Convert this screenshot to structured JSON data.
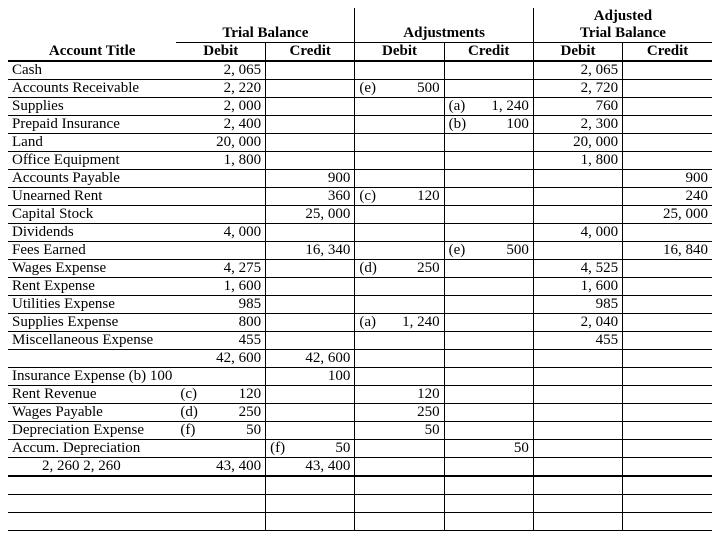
{
  "colors": {
    "background": "#ffffff",
    "text": "#000000",
    "border": "#000000"
  },
  "typography": {
    "family": "Times New Roman",
    "size_pt": 11,
    "header_bold": true
  },
  "headers": {
    "trial_balance": "Trial Balance",
    "adjustments": "Adjustments",
    "adjusted": "Adjusted\nTrial Balance",
    "account_title": "Account Title",
    "debit": "Debit",
    "credit": "Credit"
  },
  "rows": [
    {
      "title": "Cash",
      "tb_d": "2, 065",
      "atb_d": "2, 065"
    },
    {
      "title": "Accounts Receivable",
      "tb_d": "2, 220",
      "adj_d_tag": "(e)",
      "adj_d": "500",
      "atb_d": "2, 720"
    },
    {
      "title": "Supplies",
      "tb_d": "2, 000",
      "adj_c_tag": "(a)",
      "adj_c": "1, 240",
      "atb_d": "760"
    },
    {
      "title": "Prepaid Insurance",
      "tb_d": "2, 400",
      "adj_c_tag": "(b)",
      "adj_c": "100",
      "atb_d": "2, 300"
    },
    {
      "title": "Land",
      "tb_d": "20, 000",
      "atb_d": "20, 000"
    },
    {
      "title": "Office Equipment",
      "tb_d": "1, 800",
      "atb_d": "1, 800"
    },
    {
      "title": "Accounts Payable",
      "tb_c": "900",
      "atb_c": "900"
    },
    {
      "title": "Unearned Rent",
      "tb_c": "360",
      "adj_d_tag": "(c)",
      "adj_d": "120",
      "atb_c": "240"
    },
    {
      "title": "Capital Stock",
      "tb_c": "25, 000",
      "atb_c": "25, 000"
    },
    {
      "title": "Dividends",
      "tb_d": "4, 000",
      "atb_d": "4, 000"
    },
    {
      "title": "Fees Earned",
      "tb_c": "16, 340",
      "adj_c_tag": "(e)",
      "adj_c": "500",
      "atb_c": "16, 840"
    },
    {
      "title": "Wages Expense",
      "tb_d": "4, 275",
      "adj_d_tag": "(d)",
      "adj_d": "250",
      "atb_d": "4, 525"
    },
    {
      "title": "Rent Expense",
      "tb_d": "1, 600",
      "atb_d": "1, 600"
    },
    {
      "title": "Utilities Expense",
      "tb_d": "985",
      "atb_d": "985"
    },
    {
      "title": "Supplies Expense",
      "tb_d": "800",
      "adj_d_tag": "(a)",
      "adj_d": "1, 240",
      "atb_d": "2, 040"
    },
    {
      "title": "Miscellaneous Expense",
      "tb_d": "455",
      "atb_d": "455"
    },
    {
      "title": "",
      "tb_d": "42, 600",
      "tb_c": "42, 600",
      "totals_tb": true
    },
    {
      "title": "Insurance Expense",
      "title_tag": "(b)",
      "title_extra": "100",
      "tb_c": "100"
    },
    {
      "title": "Rent Revenue",
      "tb_d_tag": "(c)",
      "tb_d": "120",
      "adj_d": "120"
    },
    {
      "title": "Wages Payable",
      "tb_d_tag": "(d)",
      "tb_d": "250",
      "adj_d": "250"
    },
    {
      "title": "Depreciation Expense",
      "tb_d_tag": "(f)",
      "tb_d": "50",
      "adj_d": "50"
    },
    {
      "title": "Accum. Depreciation",
      "tb_c_tag": "(f)",
      "tb_c": "50",
      "adj_c": "50",
      "adj_rule": true
    },
    {
      "title": "",
      "title_extra2": "2, 260        2, 260",
      "tb_d": "43, 400",
      "tb_c": "43, 400",
      "totals_all": true
    }
  ]
}
